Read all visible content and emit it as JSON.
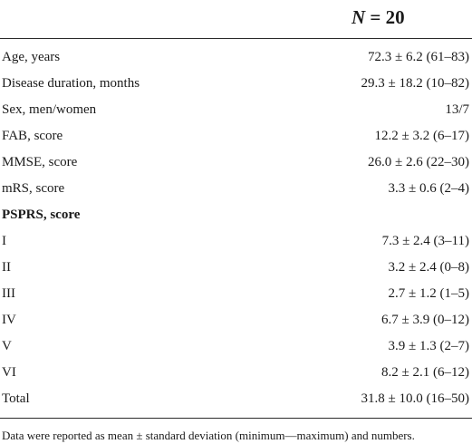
{
  "header": {
    "n_symbol": "N",
    "n_value": "= 20"
  },
  "rows": [
    {
      "label": "Age, years",
      "value": "72.3 ± 6.2 (61–83)"
    },
    {
      "label": "Disease duration, months",
      "value": "29.3 ± 18.2 (10–82)"
    },
    {
      "label": "Sex, men/women",
      "value": "13/7"
    },
    {
      "label": "FAB, score",
      "value": "12.2 ± 3.2 (6–17)"
    },
    {
      "label": "MMSE, score",
      "value": "26.0 ± 2.6 (22–30)"
    },
    {
      "label": "mRS, score",
      "value": "3.3 ± 0.6 (2–4)"
    },
    {
      "label": "PSPRS, score",
      "value": ""
    },
    {
      "label": "I",
      "value": "7.3 ± 2.4 (3–11)"
    },
    {
      "label": "II",
      "value": "3.2 ± 2.4 (0–8)"
    },
    {
      "label": "III",
      "value": "2.7 ± 1.2 (1–5)"
    },
    {
      "label": "IV",
      "value": "6.7 ± 3.9 (0–12)"
    },
    {
      "label": "V",
      "value": "3.9 ± 1.3 (2–7)"
    },
    {
      "label": "VI",
      "value": "8.2 ± 2.1 (6–12)"
    },
    {
      "label": "Total",
      "value": "31.8 ± 10.0 (16–50)"
    }
  ],
  "footnote": "Data were reported as mean ± standard deviation (minimum—maximum) and numbers."
}
